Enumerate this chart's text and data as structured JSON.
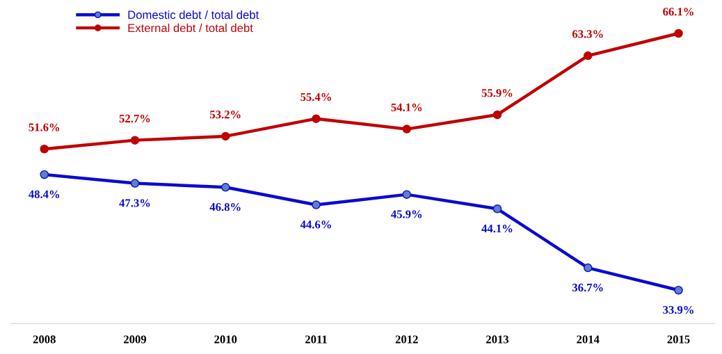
{
  "chart_data": {
    "type": "line",
    "categories": [
      "2008",
      "2009",
      "2010",
      "2011",
      "2012",
      "2013",
      "2014",
      "2015"
    ],
    "series": [
      {
        "name": "Domestic debt / total debt",
        "color": "#0a0ad2",
        "values": [
          48.4,
          47.3,
          46.8,
          44.6,
          45.9,
          44.1,
          36.7,
          33.9
        ],
        "value_labels": [
          "48.4%",
          "47.3%",
          "46.8%",
          "44.6%",
          "45.9%",
          "44.1%",
          "36.7%",
          "33.9%"
        ]
      },
      {
        "name": "External debt / total debt",
        "color": "#c00000",
        "values": [
          51.6,
          52.7,
          53.2,
          55.4,
          54.1,
          55.9,
          63.3,
          66.1
        ],
        "value_labels": [
          "51.6%",
          "52.7%",
          "53.2%",
          "55.4%",
          "54.1%",
          "55.9%",
          "63.3%",
          "66.1%"
        ]
      }
    ],
    "marker": "circle",
    "line_style": "solid",
    "legend": "top left",
    "grid": false,
    "tick_labels": "x"
  }
}
